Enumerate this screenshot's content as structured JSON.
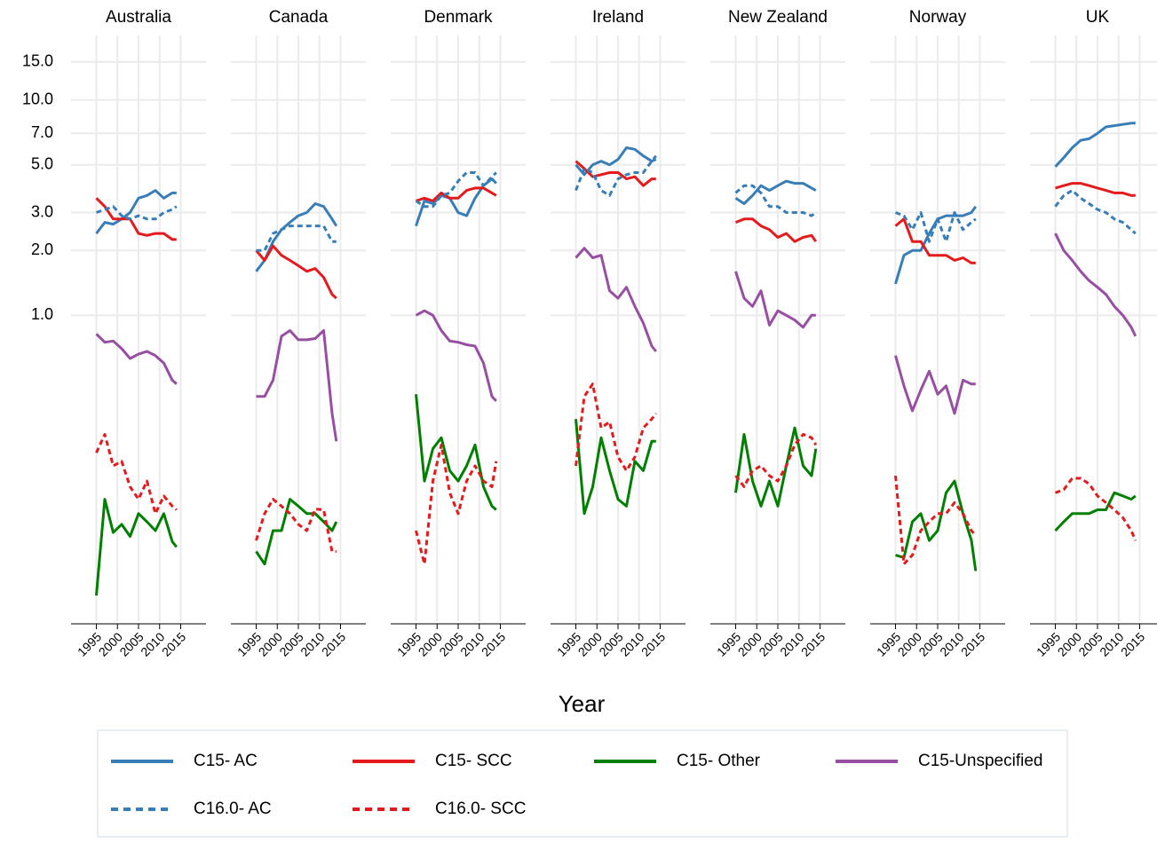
{
  "chart_data": {
    "type": "line",
    "log_y": true,
    "grid": true,
    "x_label": "Year",
    "x": [
      1995,
      1997,
      1999,
      2001,
      2003,
      2005,
      2007,
      2009,
      2011,
      2013,
      2014
    ],
    "xlim": [
      1989,
      2021
    ],
    "xticks": [
      1995,
      2000,
      2005,
      2010,
      2015
    ],
    "ylim": [
      0.038,
      19
    ],
    "yticks": [
      {
        "value": 1,
        "label": "1.0"
      },
      {
        "value": 2,
        "label": "2.0"
      },
      {
        "value": 3,
        "label": "3.0"
      },
      {
        "value": 5,
        "label": "5.0"
      },
      {
        "value": 7,
        "label": "7.0"
      },
      {
        "value": 10,
        "label": "10.0"
      },
      {
        "value": 15,
        "label": "15.0"
      }
    ],
    "legend_position": "bottom",
    "series": [
      {
        "name": "C15- AC",
        "color": "#377eb8",
        "dashed": false
      },
      {
        "name": "C15- SCC",
        "color": "#e41a1c",
        "dashed": false
      },
      {
        "name": "C15- Other",
        "color": "#008000",
        "dashed": false
      },
      {
        "name": "C15-Unspecified",
        "color": "#984ea3",
        "dashed": false
      },
      {
        "name": "C16.0- AC",
        "color": "#377eb8",
        "dashed": true
      },
      {
        "name": "C16.0- SCC",
        "color": "#e41a1c",
        "dashed": true
      }
    ],
    "panels": [
      {
        "title": "Australia",
        "values": [
          [
            2.4,
            2.7,
            2.65,
            2.8,
            3.0,
            3.5,
            3.6,
            3.8,
            3.5,
            3.7,
            3.7
          ],
          [
            3.5,
            3.2,
            2.8,
            2.8,
            2.8,
            2.4,
            2.35,
            2.4,
            2.4,
            2.25,
            2.25
          ],
          [
            0.05,
            0.14,
            0.098,
            0.107,
            0.094,
            0.12,
            0.11,
            0.1,
            0.12,
            0.089,
            0.084
          ],
          [
            0.82,
            0.75,
            0.76,
            0.7,
            0.63,
            0.66,
            0.68,
            0.65,
            0.6,
            0.5,
            0.48
          ],
          [
            3.0,
            3.1,
            3.2,
            2.9,
            2.8,
            2.9,
            2.8,
            2.8,
            3.0,
            3.1,
            3.2
          ],
          [
            0.23,
            0.28,
            0.2,
            0.21,
            0.16,
            0.14,
            0.17,
            0.12,
            0.145,
            0.13,
            0.125
          ]
        ]
      },
      {
        "title": "Canada",
        "values": [
          [
            1.6,
            1.8,
            2.2,
            2.5,
            2.7,
            2.9,
            3.0,
            3.3,
            3.2,
            2.8,
            2.6
          ],
          [
            2.0,
            1.8,
            2.1,
            1.9,
            1.8,
            1.7,
            1.6,
            1.65,
            1.5,
            1.25,
            1.2
          ],
          [
            0.08,
            0.07,
            0.1,
            0.1,
            0.14,
            0.13,
            0.12,
            0.12,
            0.11,
            0.1,
            0.11
          ],
          [
            0.42,
            0.42,
            0.5,
            0.8,
            0.85,
            0.77,
            0.77,
            0.78,
            0.85,
            0.35,
            0.26
          ],
          [
            2.0,
            2.0,
            2.4,
            2.5,
            2.6,
            2.6,
            2.6,
            2.6,
            2.6,
            2.2,
            2.2
          ],
          [
            0.09,
            0.12,
            0.14,
            0.13,
            0.12,
            0.107,
            0.1,
            0.126,
            0.125,
            0.08,
            0.08
          ]
        ]
      },
      {
        "title": "Denmark",
        "values": [
          [
            2.6,
            3.4,
            3.3,
            3.6,
            3.5,
            3.0,
            2.9,
            3.5,
            4.0,
            4.3,
            4.1
          ],
          [
            3.4,
            3.5,
            3.4,
            3.7,
            3.5,
            3.5,
            3.8,
            3.9,
            3.9,
            3.7,
            3.6
          ],
          [
            0.43,
            0.17,
            0.24,
            0.27,
            0.19,
            0.17,
            0.2,
            0.25,
            0.16,
            0.13,
            0.125
          ],
          [
            1.0,
            1.05,
            1.0,
            0.85,
            0.76,
            0.75,
            0.73,
            0.72,
            0.6,
            0.42,
            0.4
          ],
          [
            3.4,
            3.2,
            3.2,
            3.6,
            3.7,
            4.2,
            4.6,
            4.6,
            4.0,
            4.4,
            4.6
          ],
          [
            0.1,
            0.07,
            0.17,
            0.25,
            0.15,
            0.12,
            0.17,
            0.2,
            0.17,
            0.16,
            0.21
          ]
        ]
      },
      {
        "title": "Ireland",
        "values": [
          [
            5.0,
            4.5,
            5.0,
            5.2,
            5.0,
            5.3,
            6.0,
            5.9,
            5.5,
            5.2,
            5.3
          ],
          [
            5.2,
            4.8,
            4.4,
            4.5,
            4.6,
            4.6,
            4.3,
            4.4,
            4.0,
            4.3,
            4.3
          ],
          [
            0.33,
            0.12,
            0.16,
            0.27,
            0.19,
            0.14,
            0.13,
            0.21,
            0.19,
            0.26,
            0.26
          ],
          [
            1.85,
            2.05,
            1.85,
            1.9,
            1.3,
            1.2,
            1.35,
            1.1,
            0.92,
            0.72,
            0.68
          ],
          [
            3.8,
            4.8,
            4.6,
            3.8,
            3.6,
            4.3,
            4.5,
            4.6,
            4.6,
            5.2,
            5.5
          ],
          [
            0.2,
            0.42,
            0.48,
            0.3,
            0.32,
            0.22,
            0.19,
            0.22,
            0.3,
            0.33,
            0.35
          ]
        ]
      },
      {
        "title": "New Zealand",
        "values": [
          [
            3.5,
            3.3,
            3.6,
            4.0,
            3.8,
            4.0,
            4.2,
            4.1,
            4.1,
            3.9,
            3.8
          ],
          [
            2.7,
            2.8,
            2.8,
            2.6,
            2.5,
            2.3,
            2.4,
            2.2,
            2.3,
            2.35,
            2.2
          ],
          [
            0.15,
            0.28,
            0.17,
            0.13,
            0.17,
            0.13,
            0.2,
            0.3,
            0.2,
            0.18,
            0.24
          ],
          [
            1.6,
            1.2,
            1.1,
            1.3,
            0.9,
            1.05,
            1.0,
            0.95,
            0.88,
            1.0,
            1.0
          ],
          [
            3.7,
            4.0,
            4.0,
            3.7,
            3.2,
            3.2,
            3.0,
            3.0,
            3.0,
            2.9,
            3.0
          ],
          [
            0.18,
            0.16,
            0.19,
            0.2,
            0.18,
            0.17,
            0.2,
            0.25,
            0.28,
            0.27,
            0.25
          ]
        ]
      },
      {
        "title": "Norway",
        "values": [
          [
            1.4,
            1.9,
            2.0,
            2.0,
            2.4,
            2.8,
            2.9,
            2.9,
            2.9,
            3.0,
            3.2
          ],
          [
            2.6,
            2.8,
            2.2,
            2.2,
            1.9,
            1.9,
            1.9,
            1.8,
            1.85,
            1.75,
            1.75
          ],
          [
            0.077,
            0.075,
            0.11,
            0.12,
            0.09,
            0.1,
            0.15,
            0.17,
            0.12,
            0.09,
            0.065
          ],
          [
            0.65,
            0.47,
            0.36,
            0.45,
            0.55,
            0.43,
            0.47,
            0.35,
            0.5,
            0.48,
            0.48
          ],
          [
            3.0,
            2.9,
            2.5,
            3.0,
            2.2,
            2.8,
            2.2,
            3.0,
            2.5,
            2.7,
            2.8
          ],
          [
            0.18,
            0.07,
            0.077,
            0.1,
            0.11,
            0.12,
            0.12,
            0.135,
            0.12,
            0.1,
            0.095
          ]
        ]
      },
      {
        "title": "UK",
        "values": [
          [
            4.9,
            5.4,
            6.0,
            6.5,
            6.6,
            7.0,
            7.5,
            7.6,
            7.7,
            7.8,
            7.8
          ],
          [
            3.9,
            4.0,
            4.1,
            4.1,
            4.0,
            3.9,
            3.8,
            3.7,
            3.7,
            3.6,
            3.6
          ],
          [
            0.1,
            0.11,
            0.12,
            0.12,
            0.12,
            0.125,
            0.125,
            0.15,
            0.145,
            0.14,
            0.145
          ],
          [
            2.4,
            2.0,
            1.8,
            1.6,
            1.45,
            1.35,
            1.25,
            1.1,
            1.0,
            0.88,
            0.8
          ],
          [
            3.2,
            3.6,
            3.8,
            3.5,
            3.3,
            3.1,
            3.0,
            2.8,
            2.7,
            2.5,
            2.4
          ],
          [
            0.15,
            0.155,
            0.175,
            0.175,
            0.165,
            0.145,
            0.135,
            0.125,
            0.115,
            0.1,
            0.09
          ]
        ]
      }
    ]
  }
}
